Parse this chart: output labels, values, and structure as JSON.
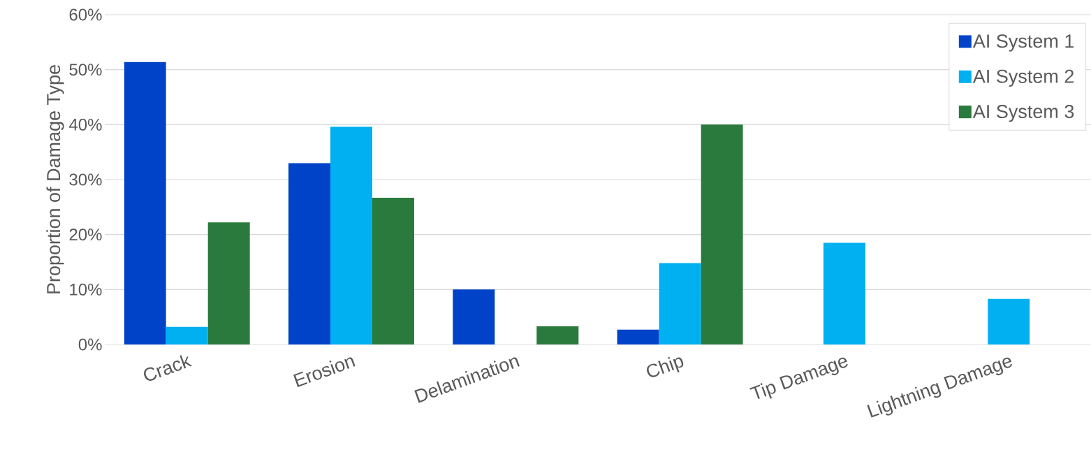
{
  "chart_data": {
    "type": "bar",
    "ylabel": "Proportion of Damage Type",
    "categories": [
      "Crack",
      "Erosion",
      "Delamination",
      "Chip",
      "Tip Damage",
      "Lightning Damage"
    ],
    "series": [
      {
        "name": "AI System 1",
        "color": "#0043c8",
        "values": [
          51.4,
          33.0,
          10.0,
          2.7,
          null,
          null
        ]
      },
      {
        "name": "AI System 2",
        "color": "#00b0f0",
        "values": [
          3.2,
          39.6,
          null,
          14.8,
          18.5,
          8.3
        ]
      },
      {
        "name": "AI System 3",
        "color": "#2a7a3e",
        "values": [
          22.2,
          26.7,
          3.3,
          40.0,
          null,
          null
        ]
      }
    ],
    "ylim": [
      0,
      60
    ],
    "yticks": [
      {
        "value": 0,
        "label": "0%"
      },
      {
        "value": 10,
        "label": "10%"
      },
      {
        "value": 20,
        "label": "20%"
      },
      {
        "value": 30,
        "label": "30%"
      },
      {
        "value": 40,
        "label": "40%"
      },
      {
        "value": 50,
        "label": "50%"
      },
      {
        "value": 60,
        "label": "60%"
      }
    ],
    "grid": "y",
    "legend": "top right"
  }
}
